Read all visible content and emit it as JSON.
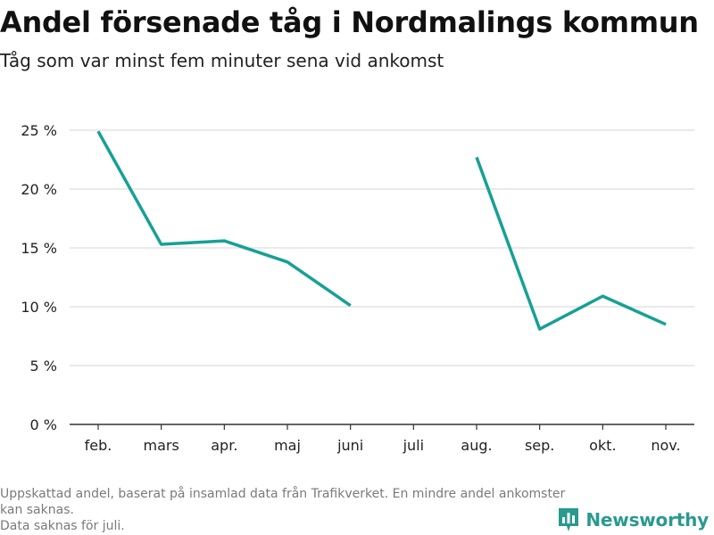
{
  "header": {
    "title": "Andel försenade tåg i Nordmalings kommun",
    "subtitle": "Tåg som var minst fem minuter sena vid ankomst"
  },
  "footer": {
    "note_line1": "Uppskattad andel, baserat på insamlad data från Trafikverket. En mindre andel ankomster kan saknas.",
    "note_line2": "Data saknas för juli.",
    "brand": "Newsworthy",
    "brand_icon": "bar-chart-logo-icon"
  },
  "colors": {
    "line": "#17a096",
    "grid": "#dddddd",
    "axis": "#333333",
    "brand": "#2a9a8e"
  },
  "chart_data": {
    "type": "line",
    "categories": [
      "feb.",
      "mars",
      "apr.",
      "maj",
      "juni",
      "juli",
      "aug.",
      "sep.",
      "okt.",
      "nov."
    ],
    "series": [
      {
        "values": [
          24.9,
          15.3,
          15.6,
          13.8,
          10.1,
          null,
          22.7,
          8.1,
          10.9,
          8.5
        ]
      }
    ],
    "yticks": [
      "0 %",
      "5 %",
      "10 %",
      "15 %",
      "20 %",
      "25 %"
    ],
    "ylim": [
      0,
      25
    ],
    "xlabel": "",
    "ylabel": "",
    "grid": true,
    "legend": "none"
  }
}
